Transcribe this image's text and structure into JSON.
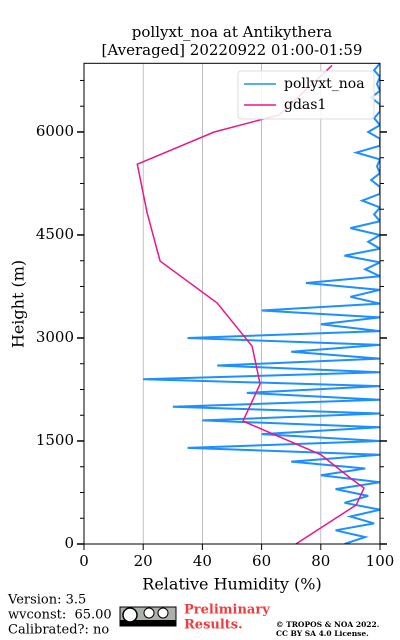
{
  "chart_data": {
    "type": "line",
    "title": [
      "pollyxt_noa at Antikythera",
      "[Averaged] 20220922 01:00-01:59"
    ],
    "x_label": "Relative Humidity (%)",
    "y_label": "Height (m)",
    "xlim": [
      0,
      100
    ],
    "ylim": [
      0,
      7000
    ],
    "xticks": [
      0,
      20,
      40,
      60,
      80,
      100
    ],
    "yticks": [
      0,
      1500,
      3000,
      4500,
      6000
    ],
    "grid": true,
    "legend": "upper right",
    "series": [
      {
        "name": "pollyxt_noa",
        "color": "#1e8fff",
        "heights": [
          0,
          100,
          200,
          300,
          400,
          500,
          600,
          700,
          800,
          900,
          1000,
          1100,
          1200,
          1300,
          1400,
          1500,
          1600,
          1700,
          1800,
          1900,
          2000,
          2100,
          2200,
          2300,
          2400,
          2500,
          2600,
          2700,
          2800,
          2900,
          3000,
          3100,
          3200,
          3300,
          3400,
          3500,
          3600,
          3700,
          3800,
          3900,
          4000,
          4100,
          4200,
          4300,
          4400,
          4500,
          4600,
          4700,
          4800,
          4900,
          5000,
          5100,
          5200,
          5300,
          5400,
          5500,
          5600,
          5700,
          5800,
          5900,
          6000,
          6100,
          6200,
          6300,
          6400,
          6500,
          6600,
          6700,
          6800,
          6900,
          7000
        ],
        "values": [
          88,
          95,
          85,
          98,
          90,
          100,
          88,
          96,
          85,
          100,
          80,
          95,
          70,
          100,
          35,
          100,
          60,
          100,
          40,
          100,
          30,
          100,
          55,
          100,
          20,
          100,
          45,
          100,
          70,
          100,
          35,
          100,
          80,
          100,
          60,
          100,
          90,
          100,
          75,
          100,
          95,
          100,
          88,
          100,
          96,
          100,
          90,
          100,
          98,
          100,
          94,
          100,
          100,
          97,
          100,
          99,
          100,
          92,
          100,
          100,
          96,
          100,
          98,
          100,
          100,
          97,
          100,
          99,
          100,
          98,
          100
        ]
      },
      {
        "name": "gdas1",
        "color": "#e8168c",
        "heights": [
          0,
          570,
          815,
          960,
          1300,
          1790,
          2330,
          2880,
          3510,
          4120,
          4830,
          5530,
          6000,
          6250,
          6970
        ],
        "values": [
          71.6,
          92,
          94.6,
          90,
          80,
          53.7,
          59.5,
          56.8,
          45,
          25.7,
          21.3,
          18,
          44,
          66,
          83.8
        ]
      }
    ]
  },
  "footer": {
    "version": "Version: 3.5",
    "wvconst": "wvconst:  65.00",
    "calibrated": "Calibrated?: no",
    "preliminary": [
      "Preliminary",
      "Results."
    ],
    "license": [
      "© TROPOS & NOA 2022.",
      "CC BY SA 4.0 License."
    ]
  }
}
